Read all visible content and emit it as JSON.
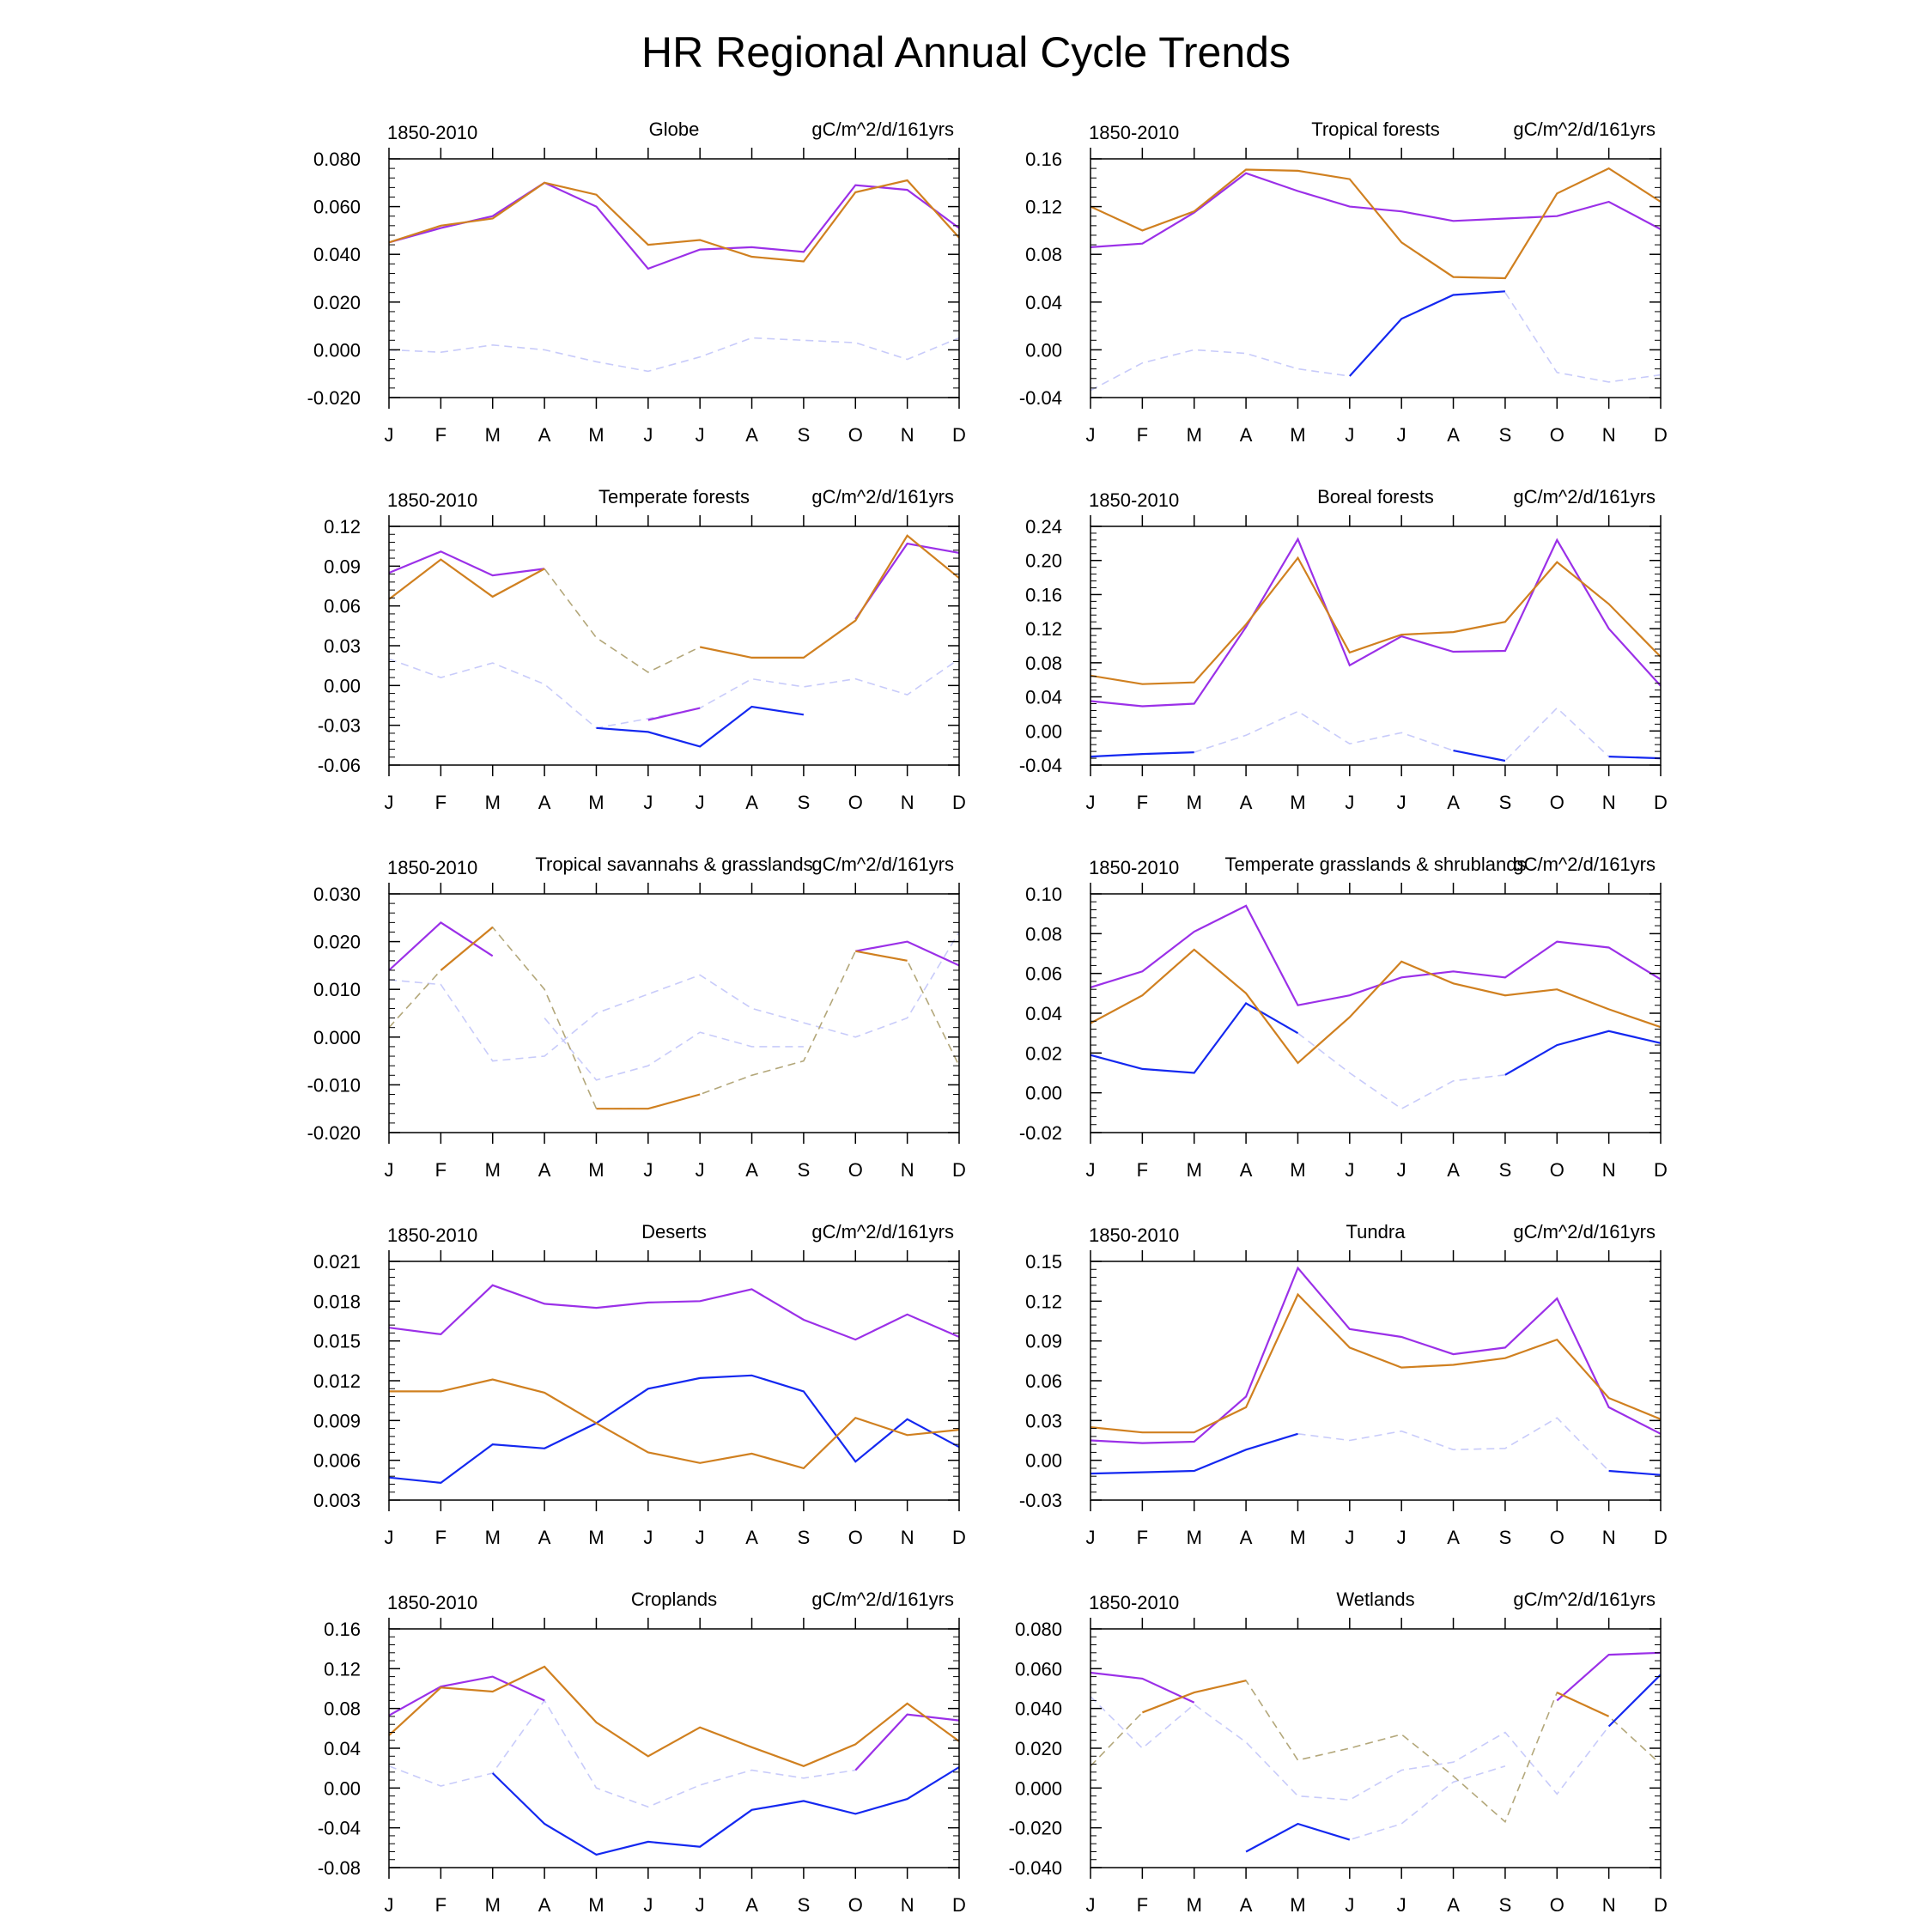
{
  "title": "HR Regional Annual Cycle Trends",
  "style": {
    "colors": {
      "purple": "#9b30e8",
      "orange": "#d08020",
      "blue": "#1428f0",
      "light_dashed": "#c8cbfa",
      "olive_dashed": "#b3a77a"
    }
  },
  "chart_data": [
    {
      "type": "line",
      "title": "Globe",
      "left_label": "1850-2010",
      "right_label": "gC/m^2/d/161yrs",
      "categories": [
        "J",
        "F",
        "M",
        "A",
        "M",
        "J",
        "J",
        "A",
        "S",
        "O",
        "N",
        "D"
      ],
      "ylim": [
        -0.02,
        0.08
      ],
      "yticks": [
        "-0.020",
        "0.000",
        "0.020",
        "0.040",
        "0.060",
        "0.080"
      ],
      "series": [
        {
          "color": "light_dashed",
          "values": [
            0.0,
            -0.001,
            0.002,
            0.0,
            -0.005,
            -0.009,
            -0.003,
            0.005,
            0.004,
            0.003,
            -0.004,
            0.005
          ]
        },
        {
          "color": "purple",
          "values": [
            0.045,
            0.051,
            0.056,
            0.07,
            0.06,
            0.034,
            0.042,
            0.043,
            0.041,
            0.069,
            0.067,
            0.051
          ]
        },
        {
          "color": "orange",
          "values": [
            0.045,
            0.052,
            0.055,
            0.07,
            0.065,
            0.044,
            0.046,
            0.039,
            0.037,
            0.066,
            0.071,
            0.047
          ]
        }
      ]
    },
    {
      "type": "line",
      "title": "Tropical forests",
      "left_label": "1850-2010",
      "right_label": "gC/m^2/d/161yrs",
      "categories": [
        "J",
        "F",
        "M",
        "A",
        "M",
        "J",
        "J",
        "A",
        "S",
        "O",
        "N",
        "D"
      ],
      "ylim": [
        -0.04,
        0.16
      ],
      "yticks": [
        "-0.04",
        "0.00",
        "0.04",
        "0.08",
        "0.12",
        "0.16"
      ],
      "series": [
        {
          "color": "light_dashed",
          "values": [
            -0.034,
            -0.011,
            0.0,
            -0.003,
            -0.016,
            -0.022,
            null,
            null,
            0.048,
            -0.019,
            -0.027,
            -0.021
          ]
        },
        {
          "color": "blue",
          "values": [
            null,
            null,
            null,
            null,
            null,
            -0.022,
            0.026,
            0.046,
            0.049,
            null,
            null,
            null
          ]
        },
        {
          "color": "purple",
          "values": [
            0.086,
            0.089,
            0.115,
            0.148,
            0.133,
            0.12,
            0.116,
            0.108,
            0.11,
            0.112,
            0.124,
            0.101
          ]
        },
        {
          "color": "orange",
          "values": [
            0.12,
            0.1,
            0.116,
            0.151,
            0.15,
            0.143,
            0.09,
            0.061,
            0.06,
            0.131,
            0.152,
            0.124
          ]
        }
      ]
    },
    {
      "type": "line",
      "title": "Temperate forests",
      "left_label": "1850-2010",
      "right_label": "gC/m^2/d/161yrs",
      "categories": [
        "J",
        "F",
        "M",
        "A",
        "M",
        "J",
        "J",
        "A",
        "S",
        "O",
        "N",
        "D"
      ],
      "ylim": [
        -0.06,
        0.12
      ],
      "yticks": [
        "-0.06",
        "-0.03",
        "0.00",
        "0.03",
        "0.06",
        "0.09",
        "0.12"
      ],
      "series": [
        {
          "color": "light_dashed",
          "values": [
            0.02,
            0.006,
            0.017,
            0.001,
            -0.032,
            -0.025,
            -0.017,
            0.005,
            -0.001,
            0.005,
            -0.007,
            0.02
          ]
        },
        {
          "color": "olive_dashed",
          "values": [
            null,
            null,
            null,
            0.088,
            0.036,
            0.01,
            0.029,
            null,
            null,
            null,
            null,
            null
          ]
        },
        {
          "color": "blue",
          "values": [
            null,
            null,
            null,
            null,
            -0.032,
            -0.035,
            -0.046,
            -0.016,
            -0.022,
            null,
            null,
            null
          ]
        },
        {
          "color": "purple",
          "values": [
            0.085,
            0.101,
            0.083,
            0.088,
            null,
            -0.026,
            -0.017,
            null,
            null,
            0.05,
            0.107,
            0.1
          ]
        },
        {
          "color": "orange",
          "values": [
            0.065,
            0.095,
            0.067,
            0.088,
            null,
            null,
            0.029,
            0.021,
            0.021,
            0.049,
            0.113,
            0.081
          ]
        }
      ]
    },
    {
      "type": "line",
      "title": "Boreal forests",
      "left_label": "1850-2010",
      "right_label": "gC/m^2/d/161yrs",
      "categories": [
        "J",
        "F",
        "M",
        "A",
        "M",
        "J",
        "J",
        "A",
        "S",
        "O",
        "N",
        "D"
      ],
      "ylim": [
        -0.04,
        0.24
      ],
      "yticks": [
        "-0.04",
        "0.00",
        "0.04",
        "0.08",
        "0.12",
        "0.16",
        "0.20",
        "0.24"
      ],
      "series": [
        {
          "color": "light_dashed",
          "values": [
            null,
            null,
            -0.025,
            -0.005,
            0.023,
            -0.015,
            -0.002,
            -0.023,
            -0.035,
            0.027,
            -0.03,
            null
          ]
        },
        {
          "color": "blue",
          "values": [
            -0.03,
            -0.027,
            -0.025,
            null,
            null,
            null,
            null,
            -0.023,
            -0.035,
            null,
            -0.03,
            -0.032
          ]
        },
        {
          "color": "purple",
          "values": [
            0.035,
            0.029,
            0.032,
            0.122,
            0.225,
            0.077,
            0.111,
            0.093,
            0.094,
            0.224,
            0.12,
            0.053
          ]
        },
        {
          "color": "orange",
          "values": [
            0.065,
            0.055,
            0.057,
            0.125,
            0.203,
            0.092,
            0.113,
            0.116,
            0.128,
            0.198,
            0.149,
            0.087
          ]
        }
      ]
    },
    {
      "type": "line",
      "title": "Tropical savannahs & grasslands",
      "left_label": "1850-2010",
      "right_label": "gC/m^2/d/161yrs",
      "categories": [
        "J",
        "F",
        "M",
        "A",
        "M",
        "J",
        "J",
        "A",
        "S",
        "O",
        "N",
        "D"
      ],
      "ylim": [
        -0.02,
        0.03
      ],
      "yticks": [
        "-0.020",
        "-0.010",
        "0.000",
        "0.010",
        "0.020",
        "0.030"
      ],
      "series": [
        {
          "color": "light_dashed",
          "values": [
            0.012,
            0.011,
            -0.005,
            -0.004,
            0.005,
            0.009,
            0.013,
            0.006,
            0.003,
            0.0,
            0.004,
            0.022
          ]
        },
        {
          "color": "light_dashed",
          "values": [
            null,
            null,
            null,
            0.004,
            -0.009,
            -0.006,
            0.001,
            -0.002,
            -0.002,
            null,
            null,
            null
          ]
        },
        {
          "color": "olive_dashed",
          "values": [
            0.002,
            0.014,
            0.023,
            0.01,
            -0.015,
            -0.015,
            -0.012,
            -0.008,
            -0.005,
            0.018,
            0.016,
            -0.006
          ]
        },
        {
          "color": "purple",
          "values": [
            0.014,
            0.024,
            0.017,
            null,
            null,
            null,
            null,
            null,
            null,
            0.018,
            0.02,
            0.015
          ]
        },
        {
          "color": "orange",
          "values": [
            null,
            0.014,
            0.023,
            null,
            -0.015,
            -0.015,
            -0.012,
            null,
            null,
            0.018,
            0.016,
            null
          ]
        }
      ]
    },
    {
      "type": "line",
      "title": "Temperate grasslands & shrublands",
      "left_label": "1850-2010",
      "right_label": "gC/m^2/d/161yrs",
      "categories": [
        "J",
        "F",
        "M",
        "A",
        "M",
        "J",
        "J",
        "A",
        "S",
        "O",
        "N",
        "D"
      ],
      "ylim": [
        -0.02,
        0.1
      ],
      "yticks": [
        "-0.02",
        "0.00",
        "0.02",
        "0.04",
        "0.06",
        "0.08",
        "0.10"
      ],
      "series": [
        {
          "color": "light_dashed",
          "values": [
            null,
            null,
            null,
            null,
            0.03,
            0.01,
            -0.008,
            0.006,
            0.009,
            null,
            null,
            null
          ]
        },
        {
          "color": "blue",
          "values": [
            0.019,
            0.012,
            0.01,
            0.045,
            0.03,
            null,
            null,
            null,
            0.009,
            0.024,
            0.031,
            0.025
          ]
        },
        {
          "color": "purple",
          "values": [
            0.053,
            0.061,
            0.081,
            0.094,
            0.044,
            0.049,
            0.058,
            0.061,
            0.058,
            0.076,
            0.073,
            0.057
          ]
        },
        {
          "color": "orange",
          "values": [
            0.035,
            0.049,
            0.072,
            0.05,
            0.015,
            0.038,
            0.066,
            0.055,
            0.049,
            0.052,
            0.042,
            0.033
          ]
        }
      ]
    },
    {
      "type": "line",
      "title": "Deserts",
      "left_label": "1850-2010",
      "right_label": "gC/m^2/d/161yrs",
      "categories": [
        "J",
        "F",
        "M",
        "A",
        "M",
        "J",
        "J",
        "A",
        "S",
        "O",
        "N",
        "D"
      ],
      "ylim": [
        0.003,
        0.021
      ],
      "yticks": [
        "0.003",
        "0.006",
        "0.009",
        "0.012",
        "0.015",
        "0.018",
        "0.021"
      ],
      "series": [
        {
          "color": "blue",
          "values": [
            0.0047,
            0.0043,
            0.0072,
            0.0069,
            0.0088,
            0.0114,
            0.0122,
            0.0124,
            0.0112,
            0.0059,
            0.0091,
            0.007
          ]
        },
        {
          "color": "orange",
          "values": [
            0.0112,
            0.0112,
            0.0121,
            0.0111,
            0.0088,
            0.0066,
            0.0058,
            0.0065,
            0.0054,
            0.0092,
            0.0079,
            0.0083
          ]
        },
        {
          "color": "purple",
          "values": [
            0.016,
            0.0155,
            0.0192,
            0.0178,
            0.0175,
            0.0179,
            0.018,
            0.0189,
            0.0166,
            0.0151,
            0.017,
            0.0153
          ]
        }
      ]
    },
    {
      "type": "line",
      "title": "Tundra",
      "left_label": "1850-2010",
      "right_label": "gC/m^2/d/161yrs",
      "categories": [
        "J",
        "F",
        "M",
        "A",
        "M",
        "J",
        "J",
        "A",
        "S",
        "O",
        "N",
        "D"
      ],
      "ylim": [
        -0.03,
        0.15
      ],
      "yticks": [
        "-0.03",
        "0.00",
        "0.03",
        "0.06",
        "0.09",
        "0.12",
        "0.15"
      ],
      "series": [
        {
          "color": "light_dashed",
          "values": [
            null,
            null,
            null,
            null,
            0.02,
            0.015,
            0.022,
            0.008,
            0.009,
            0.032,
            -0.008,
            null
          ]
        },
        {
          "color": "blue",
          "values": [
            -0.01,
            -0.009,
            -0.008,
            0.008,
            0.02,
            null,
            null,
            null,
            null,
            null,
            -0.008,
            -0.011
          ]
        },
        {
          "color": "purple",
          "values": [
            0.015,
            0.013,
            0.014,
            0.048,
            0.145,
            0.099,
            0.093,
            0.08,
            0.085,
            0.122,
            0.04,
            0.02
          ]
        },
        {
          "color": "orange",
          "values": [
            0.025,
            0.021,
            0.021,
            0.04,
            0.125,
            0.085,
            0.07,
            0.072,
            0.077,
            0.091,
            0.047,
            0.031
          ]
        }
      ]
    },
    {
      "type": "line",
      "title": "Croplands",
      "left_label": "1850-2010",
      "right_label": "gC/m^2/d/161yrs",
      "categories": [
        "J",
        "F",
        "M",
        "A",
        "M",
        "J",
        "J",
        "A",
        "S",
        "O",
        "N",
        "D"
      ],
      "ylim": [
        -0.08,
        0.16
      ],
      "yticks": [
        "-0.08",
        "-0.04",
        "0.00",
        "0.04",
        "0.08",
        "0.12",
        "0.16"
      ],
      "series": [
        {
          "color": "light_dashed",
          "values": [
            0.022,
            0.002,
            0.015,
            0.088,
            0.0,
            -0.019,
            0.003,
            0.018,
            0.01,
            0.018,
            null,
            null
          ]
        },
        {
          "color": "blue",
          "values": [
            null,
            null,
            0.015,
            -0.036,
            -0.067,
            -0.054,
            -0.059,
            -0.022,
            -0.013,
            -0.026,
            -0.011,
            0.021
          ]
        },
        {
          "color": "purple",
          "values": [
            0.073,
            0.102,
            0.112,
            0.088,
            null,
            null,
            null,
            null,
            null,
            0.018,
            0.074,
            0.068
          ]
        },
        {
          "color": "orange",
          "values": [
            0.053,
            0.101,
            0.097,
            0.122,
            0.066,
            0.032,
            0.061,
            0.041,
            0.022,
            0.044,
            0.085,
            0.047
          ]
        }
      ]
    },
    {
      "type": "line",
      "title": "Wetlands",
      "left_label": "1850-2010",
      "right_label": "gC/m^2/d/161yrs",
      "categories": [
        "J",
        "F",
        "M",
        "A",
        "M",
        "J",
        "J",
        "A",
        "S",
        "O",
        "N",
        "D"
      ],
      "ylim": [
        -0.04,
        0.08
      ],
      "yticks": [
        "-0.040",
        "-0.020",
        "0.000",
        "0.020",
        "0.040",
        "0.060",
        "0.080"
      ],
      "series": [
        {
          "color": "light_dashed",
          "values": [
            0.046,
            0.02,
            0.042,
            0.023,
            -0.004,
            -0.006,
            0.009,
            0.013,
            0.028,
            -0.003,
            0.031,
            null
          ]
        },
        {
          "color": "light_dashed",
          "values": [
            null,
            null,
            null,
            -0.032,
            -0.018,
            -0.026,
            -0.018,
            0.003,
            0.011,
            null,
            null,
            null
          ]
        },
        {
          "color": "olive_dashed",
          "values": [
            0.011,
            0.038,
            0.048,
            0.054,
            0.014,
            0.02,
            0.027,
            0.006,
            -0.017,
            0.048,
            0.036,
            0.012
          ]
        },
        {
          "color": "blue",
          "values": [
            null,
            null,
            null,
            -0.032,
            -0.018,
            -0.026,
            null,
            null,
            null,
            null,
            0.031,
            0.057
          ]
        },
        {
          "color": "purple",
          "values": [
            0.058,
            0.055,
            0.043,
            null,
            null,
            null,
            null,
            null,
            null,
            0.044,
            0.067,
            0.068
          ]
        },
        {
          "color": "orange",
          "values": [
            null,
            0.038,
            0.048,
            0.054,
            null,
            null,
            null,
            null,
            null,
            0.048,
            0.036,
            null
          ]
        }
      ]
    }
  ]
}
